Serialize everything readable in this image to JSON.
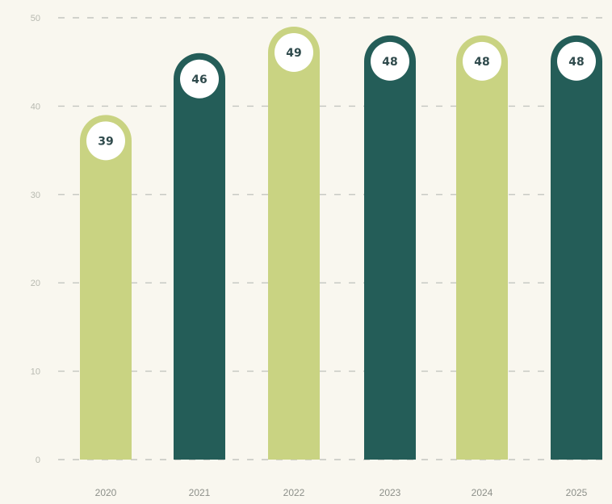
{
  "chart_data": {
    "type": "bar",
    "categories": [
      "2020",
      "2021",
      "2022",
      "2023",
      "2024",
      "2025"
    ],
    "values": [
      39,
      46,
      49,
      48,
      48,
      48
    ],
    "title": "",
    "xlabel": "",
    "ylabel": "",
    "ylim": [
      0,
      50
    ],
    "yticks": [
      "0",
      "10",
      "20",
      "30",
      "40",
      "50"
    ],
    "grid": true,
    "legend": "none",
    "bar_colors": [
      "#c9d382",
      "#245d58",
      "#c9d382",
      "#245d58",
      "#c9d382",
      "#245d58"
    ],
    "data_labels": [
      "39",
      "46",
      "49",
      "48",
      "48",
      "48"
    ]
  },
  "colors": {
    "background": "#f9f7ef",
    "grid": "#c4c6c0",
    "label_bubble": "#ffffff",
    "value_text": "#2f4a4c"
  }
}
